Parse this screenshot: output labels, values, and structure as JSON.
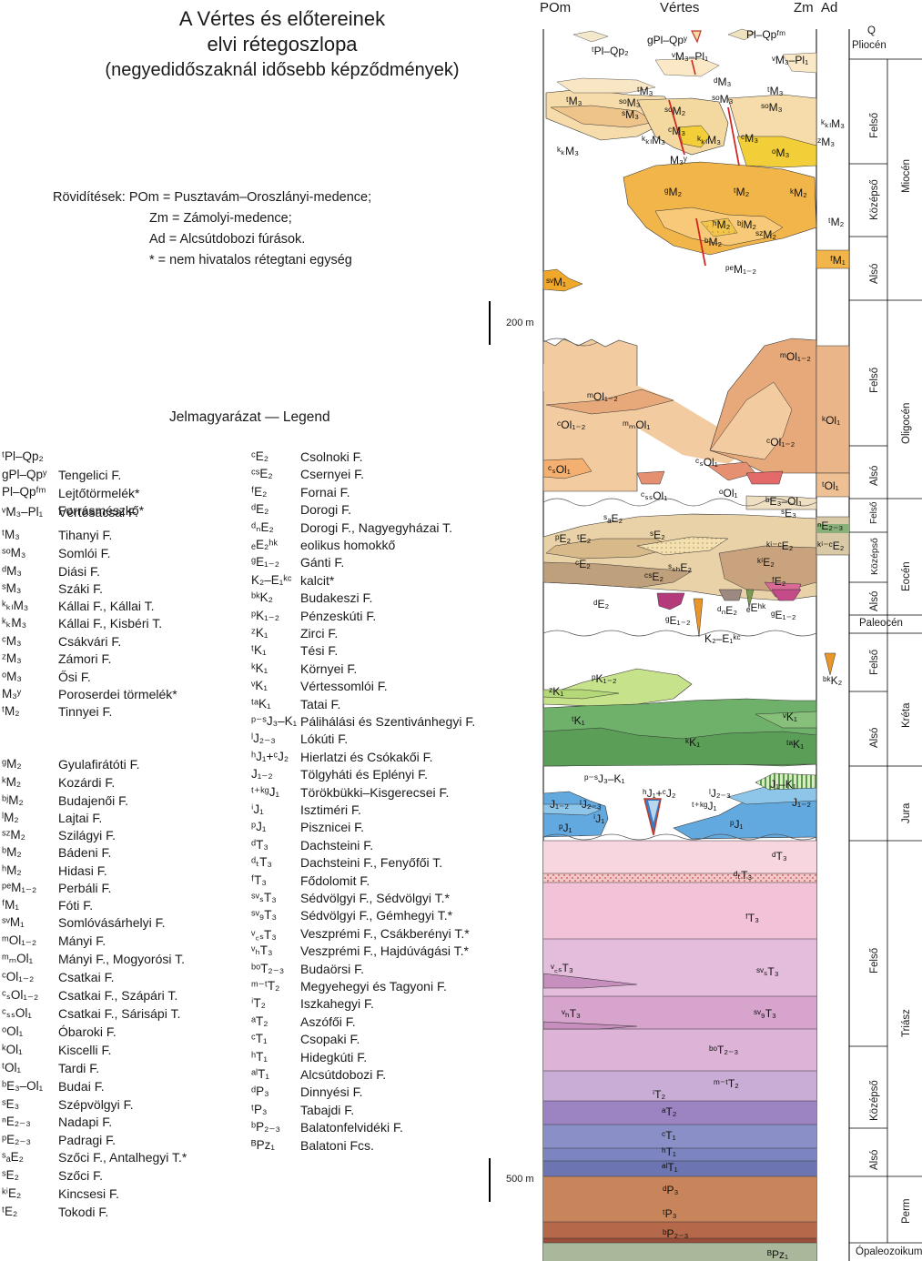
{
  "title": {
    "line1": "A Vértes és előtereinek",
    "line2": "elvi rétegoszlopa",
    "line3": "(negyedidőszaknál idősebb képződmények)"
  },
  "abbreviations": [
    "Rövidítések: POm = Pusztavám–Oroszlányi-medence;",
    "Zm = Zámolyi-medence;",
    "Ad  =  Alcsútdobozi fúrások.",
    "* = nem hivatalos rétegtani egység"
  ],
  "legend_title": "Jelmagyarázat — Legend",
  "legend_left": [
    {
      "code": "ᵗPl–Qp₂",
      "name": "Tengelici F."
    },
    {
      "code": "gPl–Qpʸ",
      "name": "Lejtőtörmelék*"
    },
    {
      "code": "Pl–Qpᶠᵐ",
      "name": "Forrásmészkő*"
    },
    {
      "code": "ᵛM₃–Pl₁",
      "name": "Vértesacsai F."
    },
    {
      "code": "ᵗM₃",
      "name": "Tihanyi F."
    },
    {
      "code": "ˢᵒM₃",
      "name": "Somlói F."
    },
    {
      "code": "ᵈM₃",
      "name": "Diási F."
    },
    {
      "code": "ˢM₃",
      "name": "Száki F."
    },
    {
      "code": "ᵏₖₗM₃",
      "name": "Kállai F., Kállai T."
    },
    {
      "code": "ᵏₖM₃",
      "name": "Kállai F., Kisbéri T."
    },
    {
      "code": "ᶜM₃",
      "name": "Csákvári F."
    },
    {
      "code": "ᶻM₃",
      "name": "Zámori F."
    },
    {
      "code": "ᵒM₃",
      "name": "Ősi F."
    },
    {
      "code": "M₃ʸ",
      "name": "Poroserdei törmelék*"
    },
    {
      "code": "ᵗM₂",
      "name": "Tinnyei F."
    },
    {
      "code": "ᵍM₂",
      "name": "Gyulafirátóti F."
    },
    {
      "code": "ᵏM₂",
      "name": "Kozárdi F."
    },
    {
      "code": "ᵇʲM₂",
      "name": "Budajenői F."
    },
    {
      "code": "ˡM₂",
      "name": "Lajtai F."
    },
    {
      "code": "ˢᶻM₂",
      "name": "Szilágyi F."
    },
    {
      "code": "ᵇM₂",
      "name": "Bádeni F."
    },
    {
      "code": "ʰM₂",
      "name": "Hidasi F."
    },
    {
      "code": "ᵖᵉM₁₋₂",
      "name": "Perbáli F."
    },
    {
      "code": "ᶠM₁",
      "name": "Fóti F."
    },
    {
      "code": "ˢᵛM₁",
      "name": "Somlóvásárhelyi F."
    },
    {
      "code": "ᵐOl₁₋₂",
      "name": "Mányi F."
    },
    {
      "code": "ᵐₘOl₁",
      "name": "Mányi F., Mogyorósi T."
    },
    {
      "code": "ᶜOl₁₋₂",
      "name": "Csatkai F."
    },
    {
      "code": "ᶜₛOl₁₋₂",
      "name": "Csatkai F., Szápári T."
    },
    {
      "code": "ᶜₛₛOl₁",
      "name": "Csatkai F., Sárisápi T."
    },
    {
      "code": "ᵒOl₁",
      "name": "Óbaroki F."
    },
    {
      "code": "ᵏOl₁",
      "name": "Kiscelli F."
    },
    {
      "code": "ᵗOl₁",
      "name": "Tardi F."
    },
    {
      "code": "ᵇE₃–Ol₁",
      "name": "Budai F."
    },
    {
      "code": "ˢE₃",
      "name": "Szépvölgyi F."
    },
    {
      "code": "ⁿE₂₋₃",
      "name": "Nadapi F."
    },
    {
      "code": "ᵖE₂₋₃",
      "name": "Padragi F."
    },
    {
      "code": "ˢₐE₂",
      "name": "Szőci F., Antalhegyi T.*"
    },
    {
      "code": "ˢE₂",
      "name": "Szőci F."
    },
    {
      "code": "ᵏⁱE₂",
      "name": "Kincsesi F."
    },
    {
      "code": "ᵗE₂",
      "name": "Tokodi F."
    }
  ],
  "legend_right": [
    {
      "code": "ᶜE₂",
      "name": "Csolnoki F."
    },
    {
      "code": "ᶜˢE₂",
      "name": "Csernyei F."
    },
    {
      "code": "ᶠE₂",
      "name": "Fornai F."
    },
    {
      "code": "ᵈE₂",
      "name": "Dorogi F."
    },
    {
      "code": "ᵈₙE₂",
      "name": "Dorogi F., Nagyegyházai T."
    },
    {
      "code": "ₑE₂ʰᵏ",
      "name": "eolikus homokkő"
    },
    {
      "code": "ᵍE₁₋₂",
      "name": "Gánti F."
    },
    {
      "code": "K₂–E₁ᵏᶜ",
      "name": "kalcit*"
    },
    {
      "code": "ᵇᵏK₂",
      "name": "Budakeszi F."
    },
    {
      "code": "ᵖK₁₋₂",
      "name": "Pénzeskúti F."
    },
    {
      "code": "ᶻK₁",
      "name": "Zirci F."
    },
    {
      "code": "ᵗK₁",
      "name": "Tési F."
    },
    {
      "code": "ᵏK₁",
      "name": "Környei F."
    },
    {
      "code": "ᵛK₁",
      "name": "Vértessomlói F."
    },
    {
      "code": "ᵗᵃK₁",
      "name": "Tatai F."
    },
    {
      "code": "ᵖ⁻ˢJ₃–K₁",
      "name": "Pálihálási és Szentivánhegyi F."
    },
    {
      "code": "ˡJ₂₋₃",
      "name": "Lókúti F."
    },
    {
      "code": "ʰJ₁+ᶜJ₂",
      "name": "Hierlatzi és Csókakői F."
    },
    {
      "code": "J₁₋₂",
      "name": "Tölgyháti és Eplényi F."
    },
    {
      "code": "ᵗ⁺ᵏᵍJ₁",
      "name": "Törökbükki–Kisgerecsei F."
    },
    {
      "code": "ⁱJ₁",
      "name": "Isztiméri F."
    },
    {
      "code": "ᵖJ₁",
      "name": "Pisznicei F."
    },
    {
      "code": "ᵈT₃",
      "name": "Dachsteini F."
    },
    {
      "code": "ᵈₜT₃",
      "name": "Dachsteini F.,  Fenyőfői T."
    },
    {
      "code": "ᶠT₃",
      "name": "Fődolomit F."
    },
    {
      "code": "ˢᵛₛT₃",
      "name": "Sédvölgyi F., Sédvölgyi T.*"
    },
    {
      "code": "ˢᵛ₉T₃",
      "name": "Sédvölgyi F., Gémhegyi T.*"
    },
    {
      "code": "ᵛ꜀ₛT₃",
      "name": "Veszprémi F., Csákberényi T.*"
    },
    {
      "code": "ᵛₕT₃",
      "name": "Veszprémi F., Hajdúvágási T.*"
    },
    {
      "code": "ᵇᵒT₂₋₃",
      "name": "Budaörsi F."
    },
    {
      "code": "ᵐ⁻ᵗT₂",
      "name": "Megyehegyi és Tagyoni F."
    },
    {
      "code": "ⁱT₂",
      "name": "Iszkahegyi F."
    },
    {
      "code": "ᵃT₂",
      "name": "Aszófői F."
    },
    {
      "code": "ᶜT₁",
      "name": "Csopaki F."
    },
    {
      "code": "ʰT₁",
      "name": "Hidegkúti F."
    },
    {
      "code": "ᵃˡT₁",
      "name": "Alcsútdobozi F."
    },
    {
      "code": "ᵈP₃",
      "name": "Dinnyési F."
    },
    {
      "code": "ᵗP₃",
      "name": "Tabajdi F."
    },
    {
      "code": "ᵇP₂₋₃",
      "name": "Balatonfelvidéki F."
    },
    {
      "code": "ᴮPz₁",
      "name": "Balatoni Fcs."
    }
  ],
  "column": {
    "header_left": "POm",
    "header_mid": "Vértes",
    "header_right1": "Zm",
    "header_right2": "Ad",
    "scale_200": "200 m",
    "scale_500": "500 m"
  },
  "labels": {
    "pl1": "ᵗPl–Qp₂",
    "pl2": "gPl–Qpʸ",
    "pl3": "Pl–Qpᶠᵐ",
    "pl4": "ᵛM₃–Pl₁",
    "pl5": "ᵛM₃–Pl₁",
    "m3a": "ᵗM₃",
    "m3b": "ˢᵒM₃",
    "m3c": "ˢM₃",
    "m3d": "ᵈM₃",
    "m3e": "ᵗM₃",
    "m3f": "ˢᵒM₃",
    "m3g": "ᵗM₃",
    "m3h": "ˢᵒM₂",
    "m3i": "ᶜM₃",
    "m3j": "ᵏₖₗM₃",
    "m3k": "ᵏₖₗM₃",
    "m3l": "ᶜM₃",
    "m3m": "ᵒM₃",
    "m3n": "ᶻM₃",
    "m3o": "ᵏₖM₃",
    "m3p": "M₃ʸ",
    "m3q": "ˢᵒM₃",
    "m3r": "ᵏₖₗM₃",
    "m2a": "ᵍM₂",
    "m2b": "ᵗM₂",
    "m2c": "ᵏM₂",
    "m2d": "ʰM₂",
    "m2e": "ᵇʲM₂",
    "m2f": "ˢᶻM₂",
    "m2g": "ᵇM₂",
    "m2h": "ᵗM₂",
    "m2i": "ᵖᵉM₁₋₂",
    "m2j": "ᶠM₁",
    "m1": "ˢᵛM₁",
    "ol1": "ᵐOl₁₋₂",
    "ol2": "ᵐOl₁₋₂",
    "ol3": "ᶜOl₁₋₂",
    "ol4": "ᵐₘOl₁",
    "ol5": "ᶜOl₁₋₂",
    "ol6": "ᵏOl₁",
    "ol7": "ᶜₛOl₁",
    "ol8": "ᶜₛOl₁",
    "ol9": "ᶜₛₛOl₁",
    "ol10": "ᵒOl₁",
    "ol11": "ᵗOl₁",
    "ol12": "ᵇE₃–Ol₁",
    "e1": "ˢₐE₂",
    "e2": "ᵖE₂",
    "e3": "ᵗE₂",
    "e4": "ˢE₂",
    "e5": "ᶜE₂",
    "e6": "ˢₛₕE₂",
    "e7": "ᶜˢE₂",
    "e8": "ᵏⁱE₂",
    "e9": "ᵏⁱ⁻ᶜE₂",
    "e10": "ᶠE₂",
    "e11": "ᵈE₂",
    "e12": "ᵍE₁₋₂",
    "e13": "ᵈₙE₂",
    "e14": "ₑEʰᵏ",
    "e15": "ᵍE₁₋₂",
    "e16": "K₂–E₁ᵏᶜ",
    "e17": "ˢE₃",
    "e18": "ⁿE₂₋₃",
    "e19": "ᵏⁱ⁻ᶜE₂",
    "k1": "ᵖK₁₋₂",
    "k2": "ᶻK₁",
    "k3": "ᵗK₁",
    "k4": "ᵏK₁",
    "k5": "ᵛK₁",
    "k6": "ᵗᵃK₁",
    "k7": "ᵇᵏK₂",
    "j1": "ᵖ⁻ˢJ₃–K₁",
    "j2": "J₁₋₂",
    "j3": "ˡJ₂₋₃",
    "j4": "ⁱJ₁",
    "j5": "ᵖJ₁",
    "j6": "ʰJ₁+ᶜJ₂",
    "j7": "ˡJ₂₋₃",
    "j8": "ᵗ⁺ᵏᵍJ₁",
    "j9": "J₁–K₁",
    "j10": "J₁₋₂",
    "j11": "ᵖJ₁",
    "t1": "ᵈT₃",
    "t2": "ᵈₜT₃",
    "t3": "ᶠT₃",
    "t4": "ᵛ꜀ₛT₃",
    "t5": "ˢᵛₛT₃",
    "t6": "ᵛₕT₃",
    "t7": "ˢᵛ₉T₃",
    "t8": "ᵇᵒT₂₋₃",
    "t9": "ᵐ⁻ᵗT₂",
    "t10": "ⁱT₂",
    "t11": "ᵃT₂",
    "t12": "ᶜT₁",
    "t13": "ʰT₁",
    "t14": "ᵃˡT₁",
    "p1": "ᵈP₃",
    "p2": "ᵗP₃",
    "p3": "ᵇP₂₋₃",
    "pz": "ᴮPz₁"
  },
  "stages": [
    "Q",
    "Pliocén",
    "Felső",
    "Középső",
    "Alsó",
    "Felső",
    "Alsó",
    "Felső",
    "Középső",
    "Alsó",
    "Paleocén",
    "Felső",
    "Alsó",
    "Felső",
    "Középső",
    "Alsó"
  ],
  "periods": [
    "Miocén",
    "Oligocén",
    "Eocén",
    "Kréta",
    "Jura",
    "Triász",
    "Perm",
    "Ópaleozoikum"
  ]
}
